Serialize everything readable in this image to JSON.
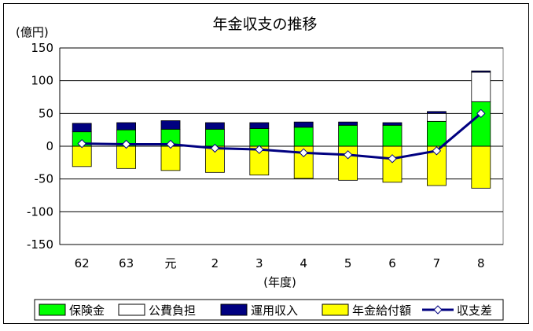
{
  "chart_data": {
    "type": "bar",
    "title": "年金収支の推移",
    "ylabel": "(億円)",
    "xlabel": "(年度)",
    "ylim": [
      -150,
      150
    ],
    "yticks": [
      150,
      100,
      50,
      0,
      -50,
      -100,
      -150
    ],
    "categories": [
      "62",
      "63",
      "元",
      "2",
      "3",
      "4",
      "5",
      "6",
      "7",
      "8"
    ],
    "series": [
      {
        "name": "保険金",
        "color": "#00ff00",
        "values": [
          22,
          25,
          26,
          26,
          27,
          29,
          32,
          32,
          38,
          68
        ]
      },
      {
        "name": "公費負担",
        "color": "#ffffff",
        "values": [
          0,
          0,
          0,
          0,
          0,
          0,
          0,
          0,
          12,
          45
        ]
      },
      {
        "name": "運用収入",
        "color": "#000080",
        "values": [
          13,
          11,
          13,
          10,
          9,
          8,
          5,
          4,
          3,
          2
        ]
      },
      {
        "name": "年金給付額",
        "color": "#ffff00",
        "values": [
          -31,
          -34,
          -37,
          -40,
          -44,
          -49,
          -52,
          -55,
          -60,
          -64
        ]
      }
    ],
    "line": {
      "name": "収支差",
      "color": "#000080",
      "values": [
        4,
        3,
        3,
        -3,
        -5,
        -10,
        -13,
        -19,
        -7,
        50
      ]
    },
    "grid": true,
    "legend": "bottom"
  }
}
